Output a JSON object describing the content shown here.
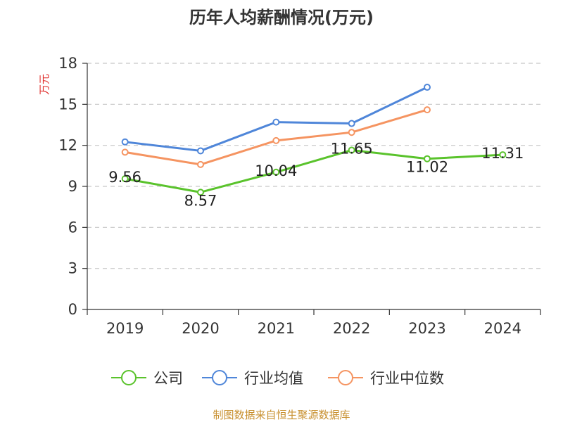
{
  "chart_data": {
    "type": "line",
    "title": "历年人均薪酬情况(万元)",
    "ylabel": "万元",
    "xlabel": "",
    "categories": [
      "2019",
      "2020",
      "2021",
      "2022",
      "2023",
      "2024"
    ],
    "ylim": [
      0,
      18
    ],
    "yticks": [
      0,
      3,
      6,
      9,
      12,
      15,
      18
    ],
    "grid": true,
    "legend_position": "bottom",
    "series": [
      {
        "name": "公司",
        "color": "#5ac32c",
        "values": [
          9.56,
          8.57,
          10.04,
          11.65,
          11.02,
          11.31
        ],
        "labels": [
          "9.56",
          "8.57",
          "10.04",
          "11.65",
          "11.02",
          "11.31"
        ]
      },
      {
        "name": "行业均值",
        "color": "#4f86d9",
        "values": [
          12.25,
          11.6,
          13.7,
          13.6,
          16.25,
          null
        ]
      },
      {
        "name": "行业中位数",
        "color": "#f59461",
        "values": [
          11.5,
          10.6,
          12.35,
          12.95,
          14.6,
          null
        ]
      }
    ],
    "source": "制图数据来自恒生聚源数据库"
  }
}
